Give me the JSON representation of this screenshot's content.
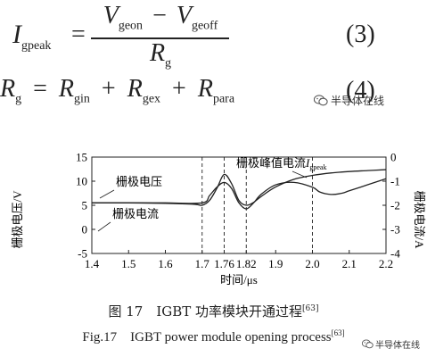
{
  "equations": {
    "eq3": {
      "lhs_symbol": "I",
      "lhs_sub": "gpeak",
      "equals": "=",
      "num_v1": "V",
      "num_v1_sub": "geon",
      "minus": "−",
      "num_v2": "V",
      "num_v2_sub": "geoff",
      "den": "R",
      "den_sub": "g",
      "number": "(3)"
    },
    "eq4": {
      "lhs": "R",
      "lhs_sub": "g",
      "equals": "=",
      "t1": "R",
      "t1_sub": "gin",
      "plus": "+",
      "t2": "R",
      "t2_sub": "gex",
      "t3": "R",
      "t3_sub": "para",
      "number": "(4)"
    }
  },
  "watermark_top": "半导体在线",
  "watermark_bottom": "半导体在线",
  "chart_data": {
    "type": "line",
    "xlabel": "时间/μs",
    "ylabel_left": "栅极电压/V",
    "ylabel_right": "栅极电流/A",
    "xlim": [
      1.4,
      2.2
    ],
    "ylim_left": [
      -5,
      15
    ],
    "ylim_right": [
      -4,
      0
    ],
    "x_ticks": [
      "1.4",
      "1.5",
      "1.6",
      "1.7",
      "1.76",
      "1.82",
      "1.9",
      "2.0",
      "2.1",
      "2.2"
    ],
    "y_left_ticks": [
      "-5",
      "0",
      "5",
      "10",
      "15"
    ],
    "y_right_ticks": [
      "-4",
      "-3",
      "-2",
      "-1",
      "0"
    ],
    "dashed_lines_x": [
      1.7,
      1.76,
      1.82,
      2.0
    ],
    "annotations": {
      "voltage": "栅极电压",
      "current": "栅极电流",
      "peak_prefix": "栅极峰值电流",
      "peak_symbol": "I",
      "peak_sub": "gpeak"
    },
    "series": [
      {
        "name": "栅极电压",
        "axis": "left",
        "x": [
          1.4,
          1.5,
          1.6,
          1.68,
          1.7,
          1.72,
          1.74,
          1.76,
          1.78,
          1.8,
          1.82,
          1.84,
          1.86,
          1.9,
          1.95,
          2.0,
          2.05,
          2.1,
          2.15,
          2.2
        ],
        "y": [
          5.5,
          5.5,
          5.4,
          5.2,
          5.0,
          6.0,
          8.5,
          11.4,
          9.5,
          6.0,
          5.0,
          5.6,
          6.8,
          8.8,
          10.4,
          11.2,
          11.7,
          12.0,
          12.2,
          12.4
        ]
      },
      {
        "name": "栅极电流",
        "axis": "right",
        "x": [
          1.4,
          1.5,
          1.6,
          1.7,
          1.72,
          1.74,
          1.76,
          1.78,
          1.8,
          1.82,
          1.84,
          1.86,
          1.9,
          1.95,
          2.0,
          2.02,
          2.05,
          2.08,
          2.1,
          2.15,
          2.2
        ],
        "y": [
          -1.9,
          -1.9,
          -1.9,
          -1.9,
          -1.6,
          -1.25,
          -1.05,
          -1.3,
          -1.9,
          -2.15,
          -1.9,
          -1.55,
          -1.15,
          -1.05,
          -1.25,
          -1.45,
          -1.55,
          -1.5,
          -1.4,
          -1.15,
          -0.9
        ]
      }
    ]
  },
  "captions": {
    "cn": "图 17　IGBT 功率模块开通过程",
    "cn_ref": "[63]",
    "en": "Fig.17　IGBT power module opening process",
    "en_ref": "[63]"
  }
}
